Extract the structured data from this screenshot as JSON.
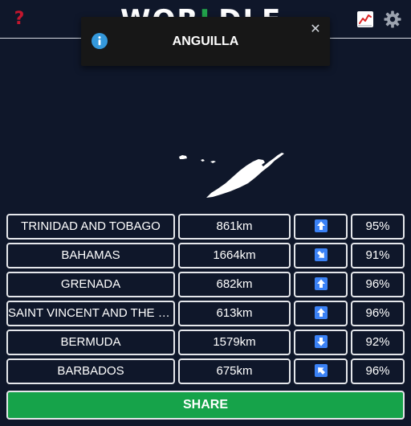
{
  "header": {
    "help_label": "?",
    "logo_text_a": "WOR",
    "logo_text_b": "L",
    "logo_text_c": "DLE",
    "stats_icon": "stats-chart-icon",
    "settings_icon": "gear-icon"
  },
  "toast": {
    "message": "ANGUILLA",
    "info_icon": "info-icon",
    "close_label": "✕"
  },
  "map": {
    "shape_color": "#ffffff"
  },
  "guesses": [
    {
      "name": "TRINIDAD AND TOBAGO",
      "distance": "861km",
      "direction": "N",
      "percent": "95%"
    },
    {
      "name": "BAHAMAS",
      "distance": "1664km",
      "direction": "SE",
      "percent": "91%"
    },
    {
      "name": "GRENADA",
      "distance": "682km",
      "direction": "N",
      "percent": "96%"
    },
    {
      "name": "SAINT VINCENT AND THE GRENADINES",
      "distance": "613km",
      "direction": "N",
      "percent": "96%"
    },
    {
      "name": "BERMUDA",
      "distance": "1579km",
      "direction": "S",
      "percent": "92%"
    },
    {
      "name": "BARBADOS",
      "distance": "675km",
      "direction": "NW",
      "percent": "96%"
    }
  ],
  "share": {
    "label": "SHARE"
  },
  "colors": {
    "background": "#0f172a",
    "accent_green": "#16a34a",
    "help_red": "#c2172e",
    "direction_blue": "#3b82f6",
    "info_blue": "#3498db"
  }
}
